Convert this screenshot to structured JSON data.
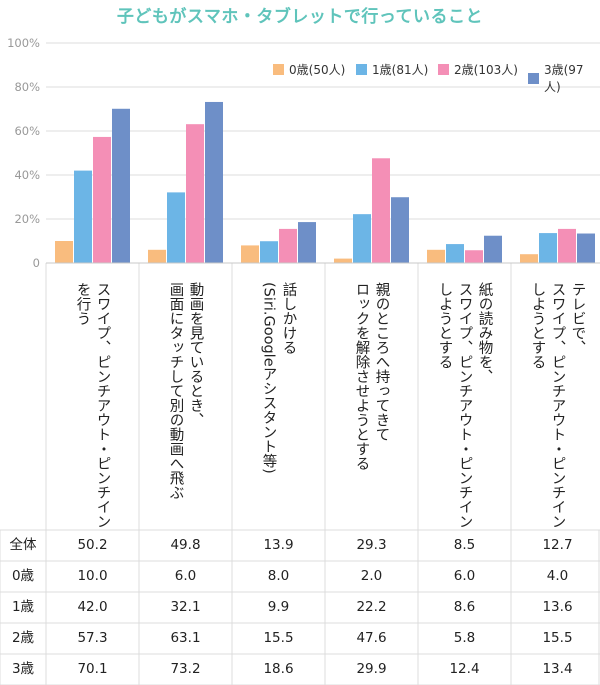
{
  "title": "子どもがスマホ・タブレットで行っていること",
  "colors": {
    "age0": "#f9bc7e",
    "age1": "#6cb5e6",
    "age2": "#f48fb6",
    "age3": "#6e8fc8",
    "grid": "#dcdcdc",
    "axis_text": "#999999"
  },
  "chart_data": {
    "type": "bar",
    "title": "子どもがスマホ・タブレットで行っていること",
    "ylim": [
      0,
      100
    ],
    "yticks": [
      "0",
      "20%",
      "40%",
      "60%",
      "80%",
      "100%"
    ],
    "ytick_values": [
      0,
      20,
      40,
      60,
      80,
      100
    ],
    "grid": true,
    "legend_position": "top-right",
    "categories": [
      "スワイプ、ピンチアウト・ピンチイン\nを行う",
      "動画を見ているとき、\n画面にタッチして別の動画へ飛ぶ",
      "話しかける\n(Siri.Googleアシスタント等)",
      "親のところへ持ってきて\nロックを解除させようとする",
      "紙の読み物を、\nスワイプ、ピンチアウト・ピンチイン\nしようとする",
      "テレビで、\nスワイプ、ピンチアウト・ピンチイン\nしようとする"
    ],
    "series": [
      {
        "name": "0歳(50人)",
        "values": [
          10.0,
          6.0,
          8.0,
          2.0,
          6.0,
          4.0
        ]
      },
      {
        "name": "1歳(81人)",
        "values": [
          42.0,
          32.1,
          9.9,
          22.2,
          8.6,
          13.6
        ]
      },
      {
        "name": "2歳(103人)",
        "values": [
          57.3,
          63.1,
          15.5,
          47.6,
          5.8,
          15.5
        ]
      },
      {
        "name": "3歳(97人)",
        "values": [
          70.1,
          73.2,
          18.6,
          29.9,
          12.4,
          13.4
        ]
      }
    ]
  },
  "table": {
    "rows": [
      {
        "header": "全体",
        "values": [
          "50.2",
          "49.8",
          "13.9",
          "29.3",
          "8.5",
          "12.7"
        ]
      },
      {
        "header": "0歳",
        "values": [
          "10.0",
          "6.0",
          "8.0",
          "2.0",
          "6.0",
          "4.0"
        ]
      },
      {
        "header": "1歳",
        "values": [
          "42.0",
          "32.1",
          "9.9",
          "22.2",
          "8.6",
          "13.6"
        ]
      },
      {
        "header": "2歳",
        "values": [
          "57.3",
          "63.1",
          "15.5",
          "47.6",
          "5.8",
          "15.5"
        ]
      },
      {
        "header": "3歳",
        "values": [
          "70.1",
          "73.2",
          "18.6",
          "29.9",
          "12.4",
          "13.4"
        ]
      }
    ]
  }
}
